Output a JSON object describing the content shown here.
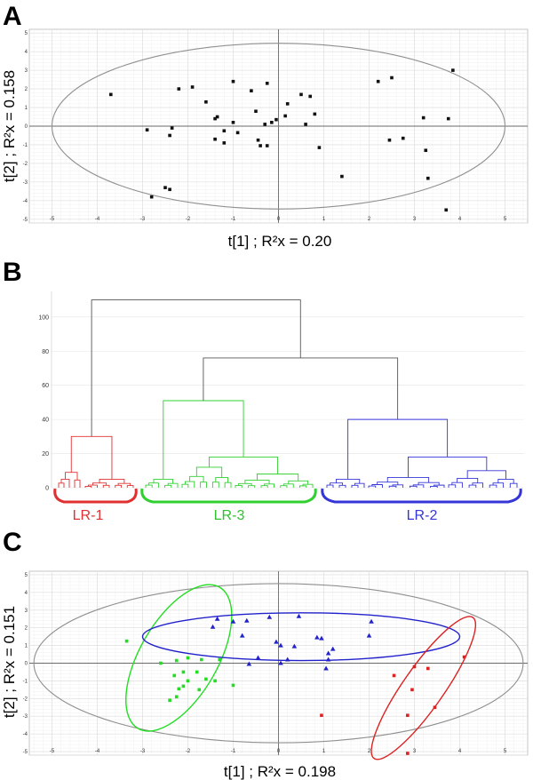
{
  "chart_data": [
    {
      "panel": "A",
      "type": "scatter",
      "xlabel": "t[1] ; R²x = 0.20",
      "ylabel": "t[2] ; R²x = 0.158",
      "xlim": [
        -5.5,
        5.5
      ],
      "ylim": [
        -5.2,
        5.2
      ],
      "xticks": [
        -5,
        -4,
        -3,
        -2,
        -1,
        0,
        1,
        2,
        3,
        4,
        5
      ],
      "yticks": [
        -5,
        -4,
        -3,
        -2,
        -1,
        0,
        1,
        2,
        3,
        4,
        5
      ],
      "grid": true,
      "ellipse": {
        "cx": 0,
        "cy": 0,
        "rx": 5.0,
        "ry": 4.45,
        "color": "#909090"
      },
      "series": [
        {
          "name": "samples",
          "color": "#111111",
          "marker": "square",
          "points": [
            [
              -3.7,
              1.7
            ],
            [
              -2.9,
              -0.2
            ],
            [
              -2.4,
              -0.5
            ],
            [
              -2.35,
              -0.1
            ],
            [
              -2.2,
              2.0
            ],
            [
              -1.9,
              2.1
            ],
            [
              -1.6,
              1.3
            ],
            [
              -1.4,
              0.4
            ],
            [
              -1.35,
              0.5
            ],
            [
              -1.4,
              -0.7
            ],
            [
              -1.2,
              -0.25
            ],
            [
              -1.2,
              -0.9
            ],
            [
              -1.0,
              0.2
            ],
            [
              -1.0,
              2.4
            ],
            [
              -0.9,
              -0.35
            ],
            [
              -0.6,
              1.9
            ],
            [
              -0.5,
              0.8
            ],
            [
              -0.45,
              -0.75
            ],
            [
              -0.4,
              -1.05
            ],
            [
              -0.25,
              2.3
            ],
            [
              -0.25,
              -1.05
            ],
            [
              -0.15,
              0.2
            ],
            [
              -0.05,
              0.35
            ],
            [
              -0.3,
              0.1
            ],
            [
              0.15,
              0.55
            ],
            [
              0.2,
              1.2
            ],
            [
              0.5,
              1.7
            ],
            [
              0.6,
              0.1
            ],
            [
              0.7,
              1.6
            ],
            [
              0.8,
              0.65
            ],
            [
              0.9,
              -1.15
            ],
            [
              1.4,
              -2.7
            ],
            [
              2.2,
              2.4
            ],
            [
              2.45,
              -0.75
            ],
            [
              2.5,
              2.6
            ],
            [
              2.75,
              -0.65
            ],
            [
              3.2,
              0.45
            ],
            [
              3.25,
              -1.3
            ],
            [
              3.3,
              -2.8
            ],
            [
              3.7,
              -4.5
            ],
            [
              3.75,
              0.4
            ],
            [
              3.85,
              3.0
            ],
            [
              -2.5,
              -3.3
            ],
            [
              -2.4,
              -3.4
            ],
            [
              -2.8,
              -3.8
            ]
          ]
        }
      ]
    },
    {
      "panel": "B",
      "type": "dendrogram",
      "ylim": [
        0,
        115
      ],
      "yticks": [
        0,
        20,
        40,
        60,
        80,
        100
      ],
      "grid": true,
      "root_height": 110,
      "merge_heights": [
        110,
        76,
        51,
        40,
        30,
        18,
        18
      ],
      "clusters": [
        {
          "label": "LR-1",
          "color": "#e03030",
          "height": 30
        },
        {
          "label": "LR-3",
          "color": "#30d030",
          "height": 51
        },
        {
          "label": "LR-2",
          "color": "#3535d8",
          "height": 40
        }
      ]
    },
    {
      "panel": "C",
      "type": "scatter",
      "xlabel": "t[1] ; R²x = 0.198",
      "ylabel": "t[2] ; R²x = 0.151",
      "xlim": [
        -5.5,
        5.5
      ],
      "ylim": [
        -5.2,
        5.2
      ],
      "xticks": [
        -5,
        -4,
        -3,
        -2,
        -1,
        0,
        1,
        2,
        3,
        4,
        5
      ],
      "yticks": [
        -5,
        -4,
        -3,
        -2,
        -1,
        0,
        1,
        2,
        3,
        4,
        5
      ],
      "grid": true,
      "ellipse": {
        "cx": 0,
        "cy": 0,
        "rx": 5.4,
        "ry": 4.5,
        "color": "#909090"
      },
      "series": [
        {
          "name": "LR-3",
          "color": "#22dd22",
          "marker": "square",
          "ellipse": {
            "cx": -2.2,
            "cy": 0.3,
            "rx": 1.8,
            "ry": 2.2,
            "angle": -60
          },
          "points": [
            [
              -3.35,
              1.25
            ],
            [
              -2.6,
              0.0
            ],
            [
              -2.25,
              0.15
            ],
            [
              -2.0,
              0.3
            ],
            [
              -1.7,
              0.2
            ],
            [
              -2.1,
              -0.5
            ],
            [
              -1.8,
              -0.5
            ],
            [
              -1.6,
              -0.9
            ],
            [
              -1.4,
              -1.0
            ],
            [
              -2.3,
              -0.7
            ],
            [
              -2.0,
              -1.0
            ],
            [
              -2.2,
              -1.45
            ],
            [
              -2.1,
              -1.3
            ],
            [
              -2.25,
              -1.9
            ],
            [
              -1.0,
              -1.25
            ],
            [
              -1.3,
              0.2
            ],
            [
              -1.75,
              -1.5
            ],
            [
              -2.4,
              -2.1
            ]
          ]
        },
        {
          "name": "LR-2",
          "color": "#2222cc",
          "marker": "triangle",
          "ellipse": {
            "cx": 0.5,
            "cy": 1.5,
            "rx": 3.5,
            "ry": 1.35,
            "angle": 0
          },
          "points": [
            [
              -1.45,
              2.05
            ],
            [
              -1.35,
              2.5
            ],
            [
              -1.0,
              2.35
            ],
            [
              -0.7,
              2.4
            ],
            [
              -0.8,
              1.55
            ],
            [
              -0.65,
              -0.05
            ],
            [
              -0.45,
              0.3
            ],
            [
              -0.2,
              2.6
            ],
            [
              -0.05,
              1.2
            ],
            [
              0.05,
              1.0
            ],
            [
              0.35,
              0.95
            ],
            [
              0.45,
              2.65
            ],
            [
              0.2,
              0.2
            ],
            [
              0.85,
              1.45
            ],
            [
              0.95,
              1.4
            ],
            [
              1.1,
              0.55
            ],
            [
              1.2,
              0.8
            ],
            [
              1.05,
              -0.3
            ],
            [
              1.1,
              0.2
            ],
            [
              2.0,
              1.55
            ],
            [
              2.05,
              2.35
            ],
            [
              0.05,
              0.0
            ]
          ]
        },
        {
          "name": "LR-1",
          "color": "#dd2222",
          "marker": "square",
          "ellipse": {
            "cx": 3.2,
            "cy": -1.4,
            "rx": 1.9,
            "ry": 1.15,
            "angle": -55
          },
          "points": [
            [
              2.55,
              -0.7
            ],
            [
              3.0,
              -0.2
            ],
            [
              3.3,
              -0.3
            ],
            [
              4.1,
              0.35
            ],
            [
              2.95,
              -1.5
            ],
            [
              3.45,
              -2.5
            ],
            [
              2.85,
              -2.95
            ],
            [
              0.95,
              -2.95
            ],
            [
              2.85,
              -5.1
            ]
          ]
        }
      ]
    }
  ],
  "panel_labels": {
    "a": "A",
    "b": "B",
    "c": "C"
  },
  "axis_titles": {
    "a_x": "t[1] ; R²x = 0.20",
    "a_y": "t[2] ; R²x = 0.158",
    "c_x": "t[1] ; R²x = 0.198",
    "c_y": "t[2] ; R²x = 0.151"
  },
  "cluster_labels": {
    "lr1": "LR-1",
    "lr3": "LR-3",
    "lr2": "LR-2"
  }
}
